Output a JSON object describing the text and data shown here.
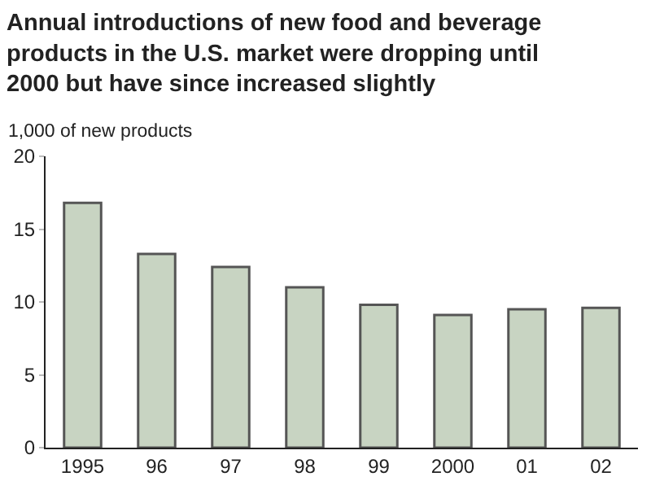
{
  "chart_data": {
    "type": "bar",
    "title": "Annual introductions of new food and beverage products in the U.S. market were dropping until 2000 but have since increased slightly",
    "ylabel": "1,000 of new products",
    "categories": [
      "1995",
      "96",
      "97",
      "98",
      "99",
      "2000",
      "01",
      "02"
    ],
    "values": [
      16.8,
      13.3,
      12.4,
      11.0,
      9.8,
      9.1,
      9.5,
      9.6
    ],
    "color": "#c8d4c2",
    "ylim": [
      0,
      20
    ],
    "yticks": [
      0,
      5,
      10,
      15,
      20
    ]
  }
}
